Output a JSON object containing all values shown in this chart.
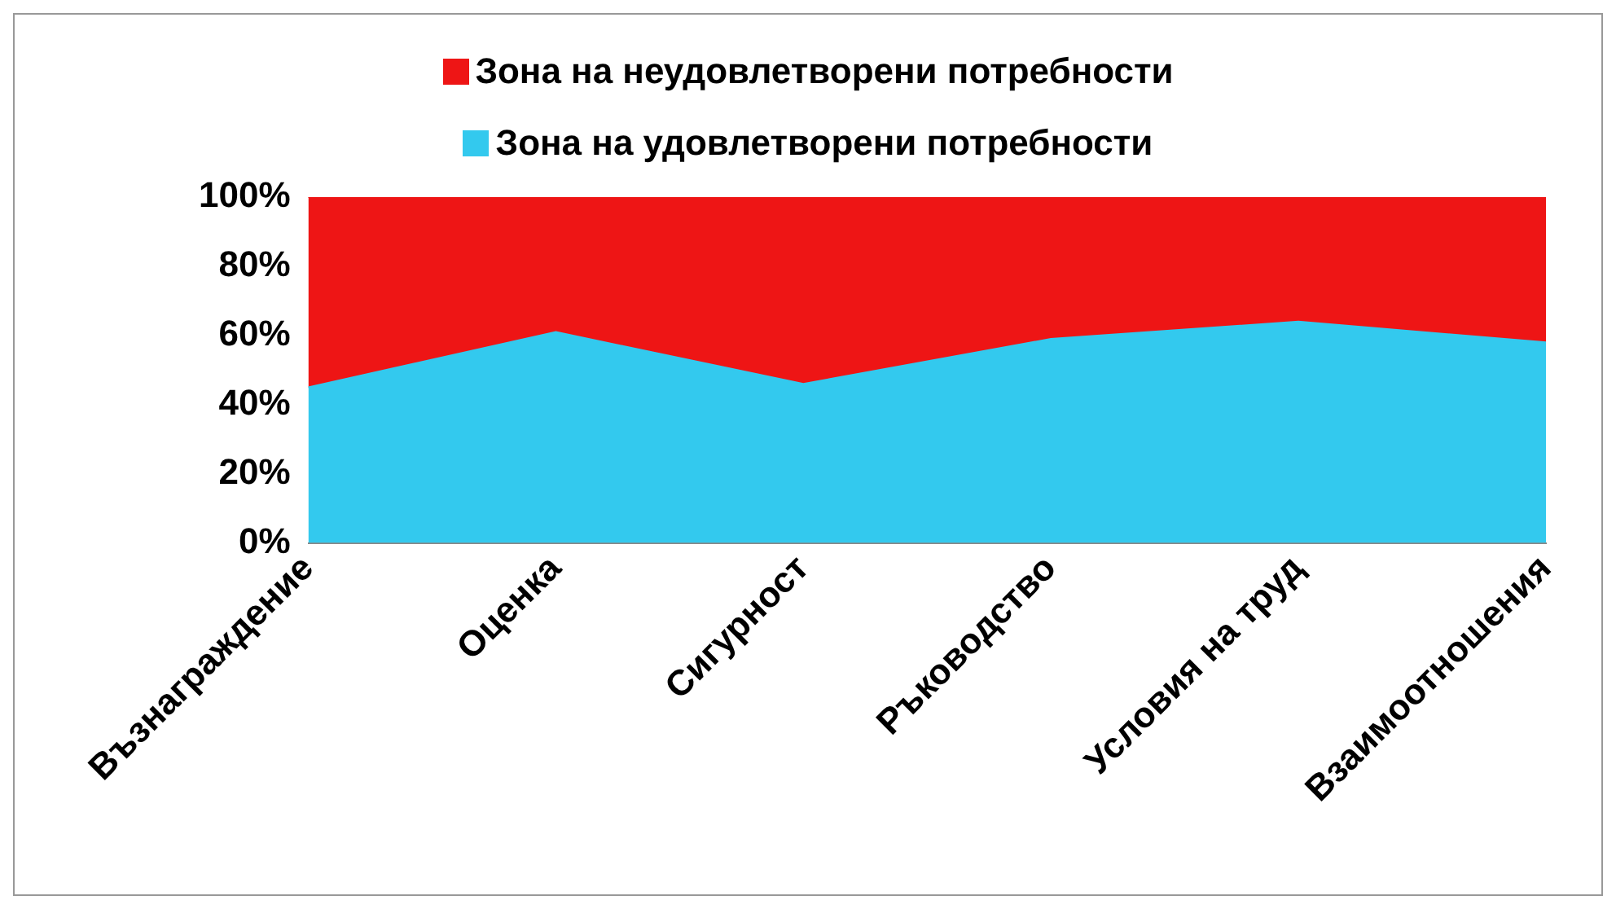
{
  "chart_data": {
    "type": "area",
    "stacked": true,
    "categories": [
      "Възнаграждение",
      "Оценка",
      "Сигурност",
      "Ръководство",
      "Условия на труд",
      "Взаимоотношения"
    ],
    "series": [
      {
        "name": "Зона на удовлетворени потребности",
        "color": "#33c9ee",
        "values": [
          45,
          61,
          46,
          59,
          64,
          58
        ]
      },
      {
        "name": "Зона на неудовлетворени потребности",
        "color": "#ee1515",
        "values": [
          55,
          39,
          54,
          41,
          36,
          42
        ]
      }
    ],
    "ylim": [
      0,
      100
    ],
    "yticks": [
      {
        "value": 0,
        "label": "0%"
      },
      {
        "value": 20,
        "label": "20%"
      },
      {
        "value": 40,
        "label": "40%"
      },
      {
        "value": 60,
        "label": "60%"
      },
      {
        "value": 80,
        "label": "80%"
      },
      {
        "value": 100,
        "label": "100%"
      }
    ],
    "grid": false,
    "legend": "top",
    "marker": "none"
  }
}
